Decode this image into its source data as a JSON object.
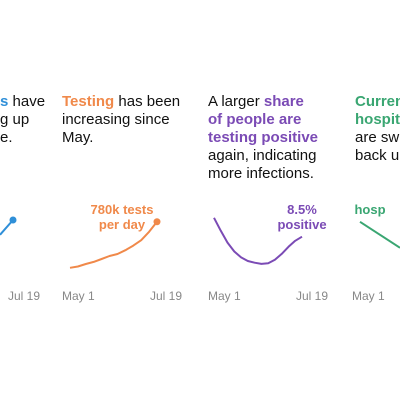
{
  "chart_data": [
    {
      "type": "line",
      "color": "#2f8fd8",
      "title_lines": [
        [
          {
            "text": "s",
            "highlight": true
          },
          {
            "text": " have",
            "highlight": false
          }
        ],
        [
          {
            "text": "g up",
            "highlight": false
          }
        ],
        [
          {
            "text": "e.",
            "highlight": false
          }
        ]
      ],
      "xlabels": [
        "Jul 19"
      ],
      "values": [
        0.6,
        0.77
      ],
      "ylim": [
        0,
        1
      ],
      "end_dot": true
    },
    {
      "type": "line",
      "color": "#f0894a",
      "title_lines": [
        [
          {
            "text": "Testing",
            "highlight": true
          },
          {
            "text": " has been",
            "highlight": false
          }
        ],
        [
          {
            "text": "increasing since",
            "highlight": false
          }
        ],
        [
          {
            "text": "May.",
            "highlight": false
          }
        ]
      ],
      "annotation": [
        "780k tests",
        "per day"
      ],
      "xlabels": [
        "May 1",
        "Jul 19"
      ],
      "values": [
        230,
        245,
        275,
        300,
        335,
        370,
        395,
        440,
        495,
        560,
        660,
        780
      ],
      "ylim": [
        0,
        1040
      ],
      "end_dot": true
    },
    {
      "type": "line",
      "color": "#7b4bb5",
      "title_lines": [
        [
          {
            "text": "A larger ",
            "highlight": false
          },
          {
            "text": "share",
            "highlight": true
          }
        ],
        [
          {
            "text": "of people are",
            "highlight": true
          }
        ],
        [
          {
            "text": "testing positive",
            "highlight": true
          }
        ],
        [
          {
            "text": "again, indicating",
            "highlight": false
          }
        ],
        [
          {
            "text": "more infections.",
            "highlight": false
          }
        ]
      ],
      "annotation": [
        "8.5%",
        "positive"
      ],
      "xlabels": [
        "May 1",
        "Jul 19"
      ],
      "values": [
        11.7,
        9.5,
        7.5,
        6.0,
        5.0,
        4.4,
        4.1,
        3.9,
        4.0,
        4.6,
        5.6,
        6.8,
        7.8,
        8.5
      ],
      "ylim": [
        0,
        14.7
      ],
      "end_dot": false
    },
    {
      "type": "line",
      "color": "#3aa672",
      "title_lines": [
        [
          {
            "text": "Curren",
            "highlight": true
          }
        ],
        [
          {
            "text": "hospit",
            "highlight": true
          }
        ],
        [
          {
            "text": "are sw",
            "highlight": false
          }
        ],
        [
          {
            "text": "back u",
            "highlight": false
          }
        ]
      ],
      "annotation": [
        "hosp"
      ],
      "xlabels": [
        "May 1"
      ],
      "values": [
        0.75,
        0.6,
        0.45
      ],
      "ylim": [
        0,
        1
      ],
      "end_dot": false
    }
  ]
}
